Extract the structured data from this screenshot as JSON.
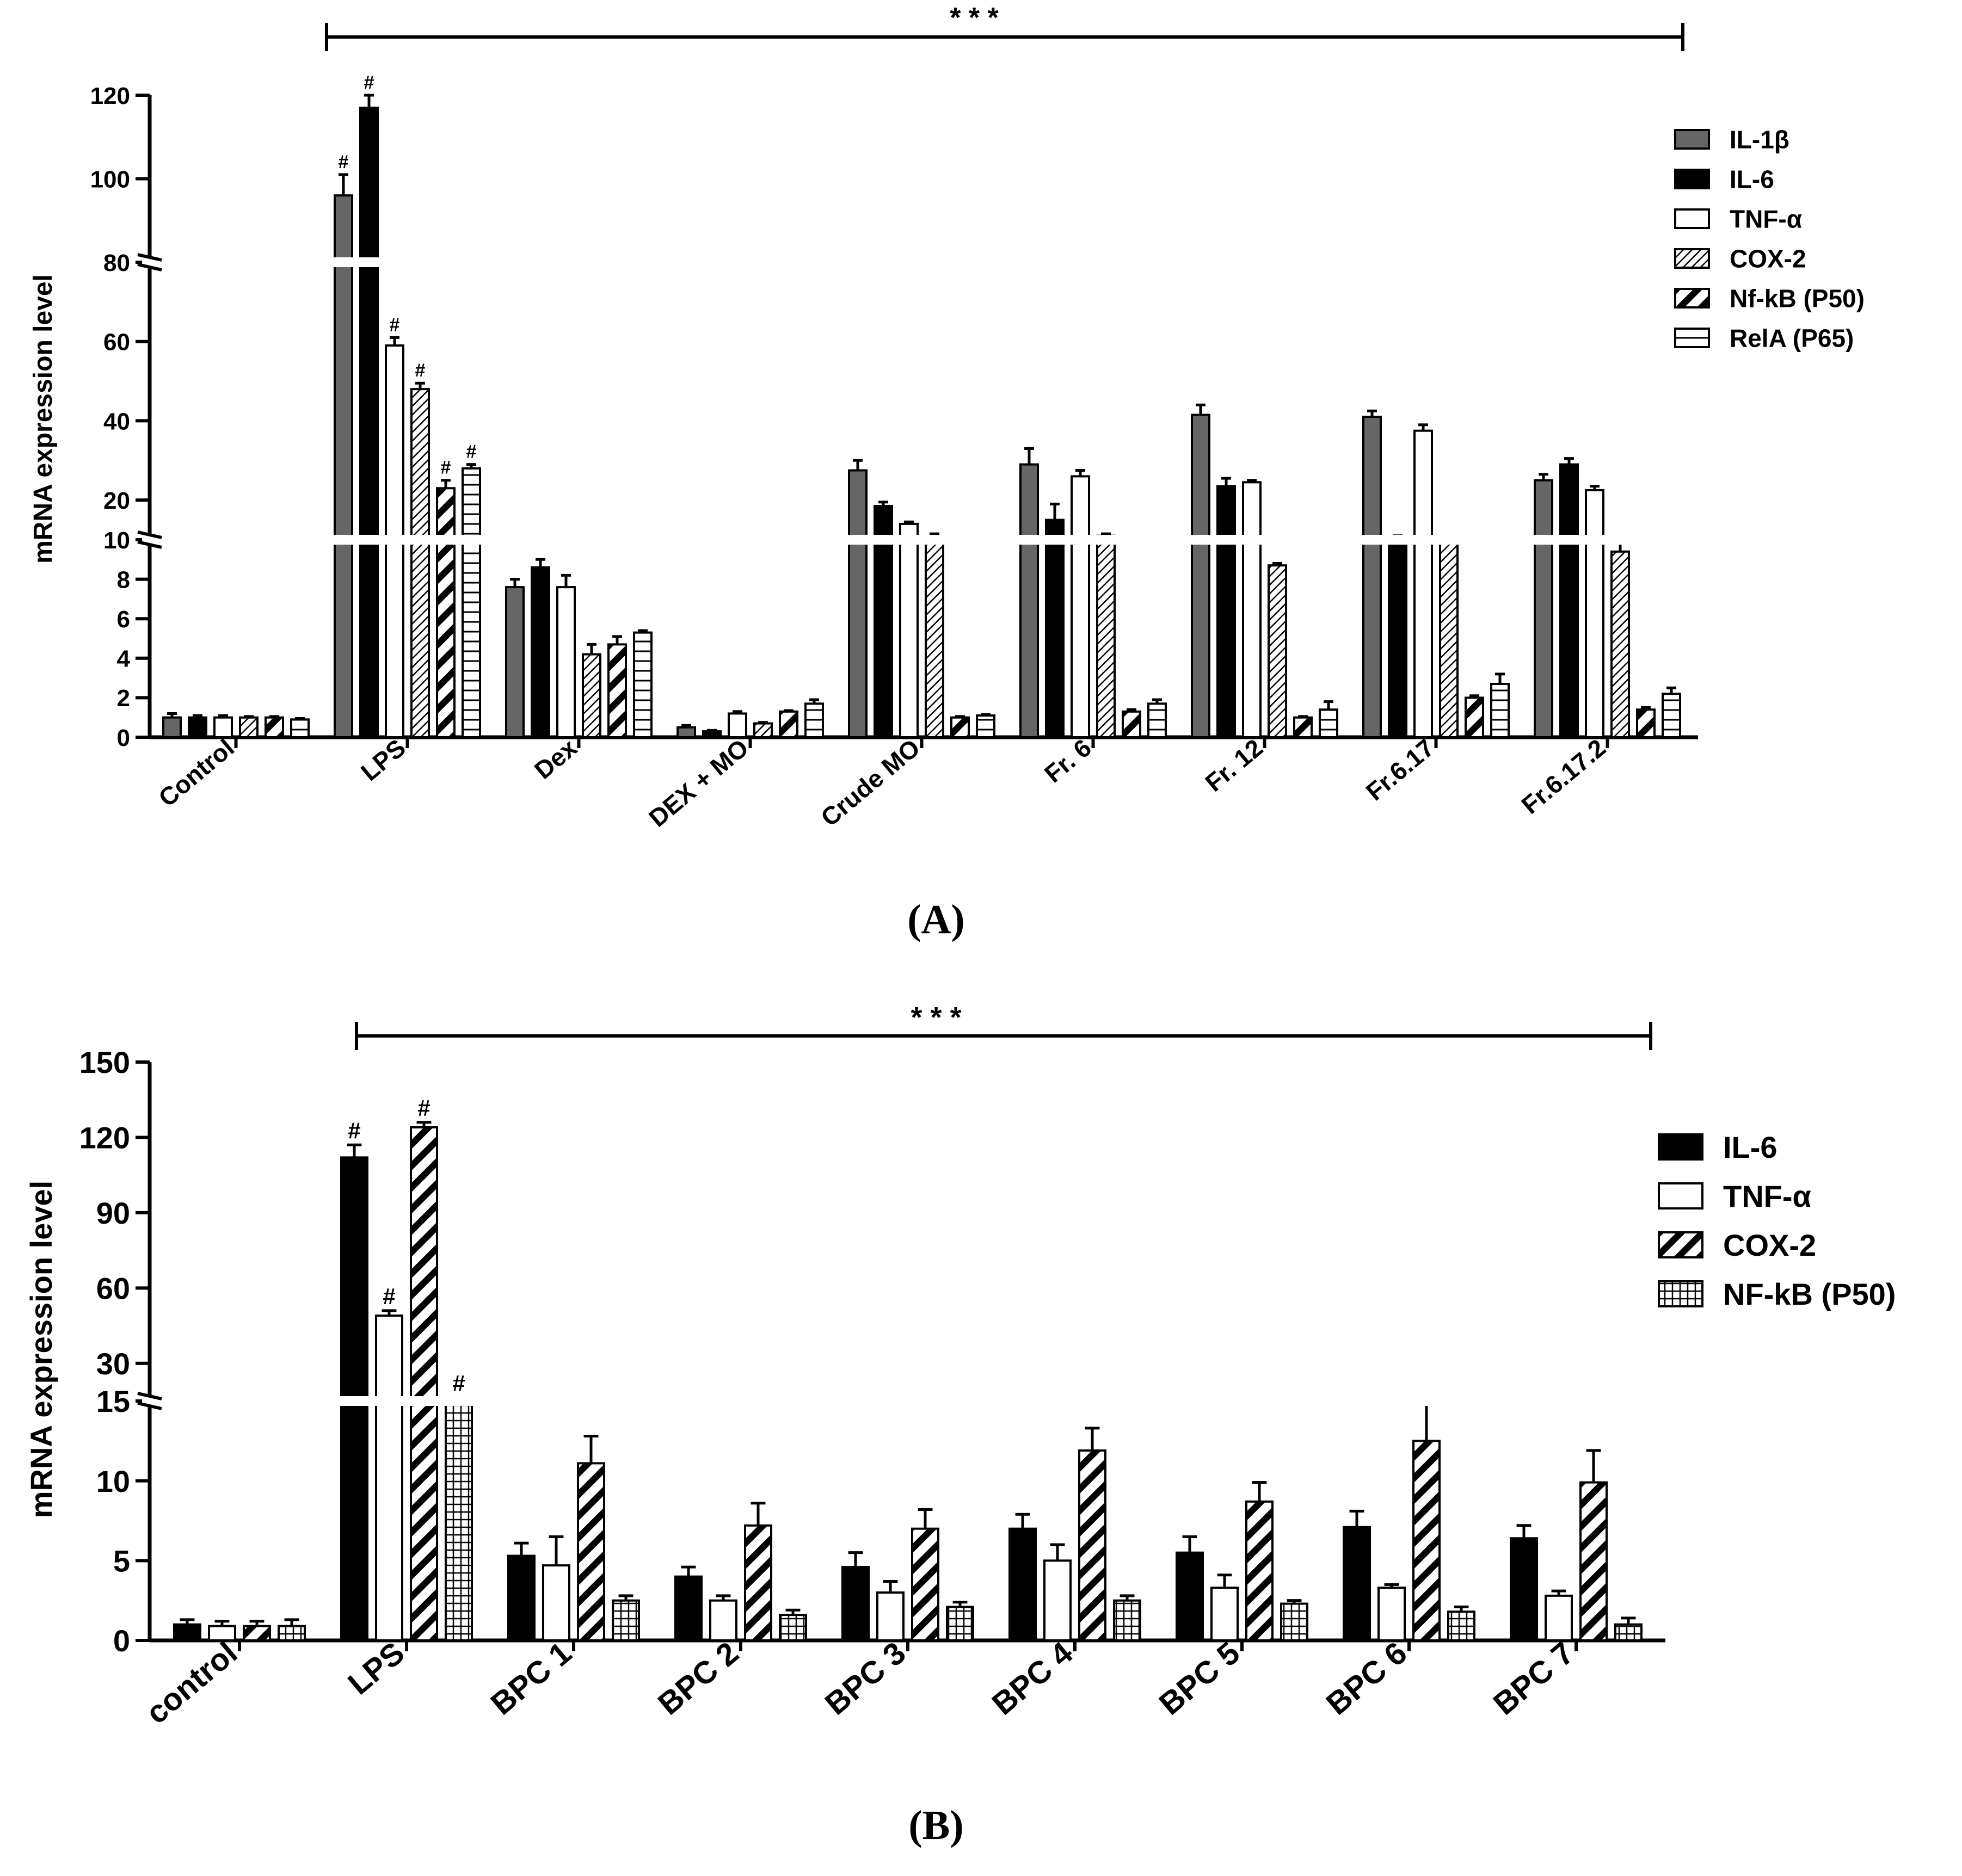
{
  "chart_data": [
    {
      "id": "A",
      "type": "bar",
      "panel_label": "(A)",
      "ylabel": "mRNA expression level",
      "significance": "* * *",
      "hash_marker": "#",
      "categories": [
        "Control",
        "LPS",
        "Dex",
        "DEX + MO",
        "Crude MO",
        "Fr. 6",
        "Fr. 12",
        "Fr.6.17",
        "Fr.6.17.2"
      ],
      "axis_segments": [
        {
          "range": [
            0,
            10
          ],
          "ticks": [
            0,
            2,
            4,
            6,
            8,
            10
          ]
        },
        {
          "range": [
            10,
            80
          ],
          "ticks": [
            20,
            40,
            60,
            80
          ]
        },
        {
          "range": [
            80,
            120
          ],
          "ticks": [
            100,
            120
          ]
        }
      ],
      "tick_labels": [
        "0",
        "2",
        "4",
        "6",
        "8",
        "10",
        "20",
        "40",
        "60",
        "80",
        "100",
        "120"
      ],
      "series": [
        {
          "name": "IL-1β",
          "pattern": "gray",
          "values": [
            1.0,
            96,
            7.6,
            0.5,
            27.5,
            29,
            41.5,
            41,
            25
          ],
          "errors": [
            0.2,
            5,
            0.4,
            0.1,
            2.5,
            4,
            2.5,
            1.5,
            1.5
          ],
          "marks": [
            false,
            true,
            false,
            false,
            false,
            false,
            false,
            false,
            false
          ]
        },
        {
          "name": "IL-6",
          "pattern": "black",
          "values": [
            1.0,
            117,
            8.6,
            0.3,
            18.5,
            15,
            23.5,
            10,
            29
          ],
          "errors": [
            0.1,
            3,
            0.4,
            0.05,
            1,
            4,
            2,
            1,
            1.5
          ],
          "marks": [
            false,
            true,
            false,
            false,
            false,
            false,
            false,
            false,
            false
          ]
        },
        {
          "name": "TNF-α",
          "pattern": "white",
          "values": [
            1.0,
            59,
            7.6,
            1.2,
            14,
            26,
            24.5,
            37.5,
            22.5
          ],
          "errors": [
            0.1,
            2,
            0.6,
            0.1,
            0.5,
            1.5,
            0.5,
            1.5,
            1
          ],
          "marks": [
            false,
            true,
            false,
            false,
            false,
            false,
            false,
            false,
            false
          ]
        },
        {
          "name": "COX-2",
          "pattern": "hatch-fine",
          "values": [
            1.0,
            48,
            4.2,
            0.7,
            10,
            11,
            8.7,
            10,
            9.4
          ],
          "errors": [
            0.05,
            1.5,
            0.5,
            0.05,
            1.5,
            0.5,
            0.1,
            0.5,
            0.5
          ],
          "marks": [
            false,
            true,
            false,
            false,
            false,
            false,
            false,
            false,
            false
          ]
        },
        {
          "name": "Nf-kB (P50)",
          "pattern": "hatch-thick",
          "values": [
            1.0,
            23,
            4.7,
            1.3,
            1.0,
            1.3,
            1.0,
            2.0,
            1.4
          ],
          "errors": [
            0.05,
            2,
            0.4,
            0.05,
            0.05,
            0.1,
            0.05,
            0.1,
            0.1
          ],
          "marks": [
            false,
            true,
            false,
            false,
            false,
            false,
            false,
            false,
            false
          ]
        },
        {
          "name": "RelA (P65)",
          "pattern": "hlines",
          "values": [
            0.9,
            28,
            5.3,
            1.7,
            1.1,
            1.7,
            1.4,
            2.7,
            2.2
          ],
          "errors": [
            0.05,
            1,
            0.1,
            0.2,
            0.05,
            0.2,
            0.4,
            0.5,
            0.3
          ],
          "marks": [
            false,
            true,
            false,
            false,
            false,
            false,
            false,
            false,
            false
          ]
        }
      ]
    },
    {
      "id": "B",
      "type": "bar",
      "panel_label": "(B)",
      "ylabel": "mRNA expression level",
      "significance": "* * *",
      "hash_marker": "#",
      "categories": [
        "control",
        "LPS",
        "BPC 1",
        "BPC 2",
        "BPC 3",
        "BPC 4",
        "BPC 5",
        "BPC 6",
        "BPC 7"
      ],
      "axis_segments": [
        {
          "range": [
            0,
            15
          ],
          "ticks": [
            0,
            5,
            10,
            15
          ]
        },
        {
          "range": [
            15,
            150
          ],
          "ticks": [
            30,
            60,
            90,
            120,
            150
          ]
        }
      ],
      "tick_labels": [
        "0",
        "5",
        "10",
        "15",
        "30",
        "60",
        "90",
        "120",
        "150"
      ],
      "series": [
        {
          "name": "IL-6",
          "pattern": "black",
          "values": [
            1.0,
            112,
            5.3,
            4.0,
            4.6,
            7.0,
            5.5,
            7.1,
            6.4
          ],
          "errors": [
            0.3,
            5,
            0.8,
            0.6,
            0.9,
            0.9,
            1.0,
            1.0,
            0.8
          ],
          "marks": [
            false,
            true,
            false,
            false,
            false,
            false,
            false,
            false,
            false
          ]
        },
        {
          "name": "TNF-α",
          "pattern": "white",
          "values": [
            0.9,
            49,
            4.7,
            2.5,
            3.0,
            5.0,
            3.3,
            3.3,
            2.8
          ],
          "errors": [
            0.3,
            2,
            1.8,
            0.3,
            0.7,
            1.0,
            0.8,
            0.2,
            0.3
          ],
          "marks": [
            false,
            true,
            false,
            false,
            false,
            false,
            false,
            false,
            false
          ]
        },
        {
          "name": "COX-2",
          "pattern": "hatch-thick",
          "values": [
            0.9,
            124,
            11.1,
            7.2,
            7.0,
            11.9,
            8.7,
            12.5,
            9.9
          ],
          "errors": [
            0.3,
            2,
            1.7,
            1.4,
            1.2,
            1.4,
            1.2,
            2.6,
            2.0
          ],
          "marks": [
            false,
            true,
            false,
            false,
            false,
            false,
            false,
            false,
            false
          ]
        },
        {
          "name": "NF-kB (P50)",
          "pattern": "grid",
          "values": [
            0.9,
            16,
            2.5,
            1.6,
            2.1,
            2.5,
            2.3,
            1.8,
            1.0
          ],
          "errors": [
            0.4,
            0.3,
            0.3,
            0.3,
            0.3,
            0.3,
            0.2,
            0.3,
            0.4
          ],
          "marks": [
            false,
            true,
            false,
            false,
            false,
            false,
            false,
            false,
            false
          ]
        }
      ]
    }
  ]
}
